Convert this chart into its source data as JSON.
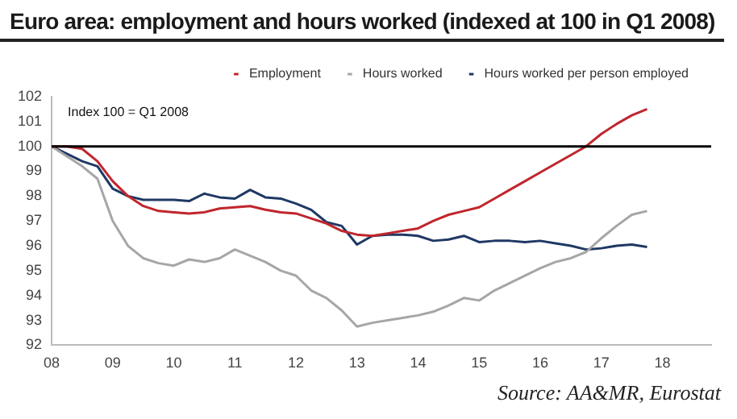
{
  "chart_data": {
    "type": "line",
    "title": "Euro area: employment and hours worked  (indexed at 100 in Q1 2008)",
    "x": [
      8,
      8.25,
      8.5,
      8.75,
      9,
      9.25,
      9.5,
      9.75,
      10,
      10.25,
      10.5,
      10.75,
      11,
      11.25,
      11.5,
      11.75,
      12,
      12.25,
      12.5,
      12.75,
      13,
      13.25,
      13.5,
      13.75,
      14,
      14.25,
      14.5,
      14.75,
      15,
      15.25,
      15.5,
      15.75,
      16,
      16.25,
      16.5,
      16.75,
      17,
      17.25,
      17.5,
      17.75
    ],
    "series": [
      {
        "name": "Employment",
        "color": "#c0262d",
        "values": [
          100,
          100,
          99.9,
          99.4,
          98.6,
          98.0,
          97.6,
          97.4,
          97.35,
          97.3,
          97.35,
          97.5,
          97.55,
          97.6,
          97.45,
          97.35,
          97.3,
          97.1,
          96.9,
          96.6,
          96.45,
          96.4,
          96.5,
          96.6,
          96.7,
          97.0,
          97.25,
          97.4,
          97.55,
          97.9,
          98.25,
          98.6,
          98.95,
          99.3,
          99.65,
          100.0,
          100.5,
          100.9,
          101.25,
          101.5
        ]
      },
      {
        "name": "Hours worked",
        "color": "#a6a6a6",
        "values": [
          100,
          99.6,
          99.2,
          98.7,
          97.0,
          96.0,
          95.5,
          95.3,
          95.2,
          95.45,
          95.35,
          95.5,
          95.85,
          95.6,
          95.35,
          95.0,
          94.8,
          94.2,
          93.9,
          93.4,
          92.75,
          92.9,
          93.0,
          93.1,
          93.2,
          93.35,
          93.6,
          93.9,
          93.8,
          94.2,
          94.5,
          94.8,
          95.1,
          95.35,
          95.5,
          95.75,
          96.3,
          96.8,
          97.25,
          97.4
        ]
      },
      {
        "name": "Hours worked per person employed",
        "color": "#1f3864",
        "values": [
          100,
          99.7,
          99.4,
          99.2,
          98.3,
          98.0,
          97.85,
          97.85,
          97.85,
          97.8,
          98.1,
          97.95,
          97.9,
          98.25,
          97.95,
          97.9,
          97.7,
          97.45,
          96.95,
          96.8,
          96.05,
          96.4,
          96.45,
          96.45,
          96.4,
          96.2,
          96.25,
          96.4,
          96.15,
          96.2,
          96.2,
          96.15,
          96.2,
          96.1,
          96.0,
          95.85,
          95.9,
          96.0,
          96.05,
          95.95
        ]
      }
    ],
    "xlim": [
      8,
      18.8
    ],
    "xticks": [
      {
        "value": 8,
        "label": "08"
      },
      {
        "value": 9,
        "label": "09"
      },
      {
        "value": 10,
        "label": "10"
      },
      {
        "value": 11,
        "label": "11"
      },
      {
        "value": 12,
        "label": "12"
      },
      {
        "value": 13,
        "label": "13"
      },
      {
        "value": 14,
        "label": "14"
      },
      {
        "value": 15,
        "label": "15"
      },
      {
        "value": 16,
        "label": "16"
      },
      {
        "value": 17,
        "label": "17"
      },
      {
        "value": 18,
        "label": "18"
      }
    ],
    "ylim": [
      92,
      102
    ],
    "yticks": [
      92,
      93,
      94,
      95,
      96,
      97,
      98,
      99,
      100,
      101,
      102
    ],
    "ref_lines": [
      {
        "axis": "y",
        "value": 100,
        "color": "#000000"
      }
    ],
    "annotations": [
      "Index 100 = Q1 2008",
      "Source: AA&MR, Eurostat"
    ],
    "legend": "top",
    "grid": false,
    "marker": "none",
    "line_style": "solid"
  }
}
